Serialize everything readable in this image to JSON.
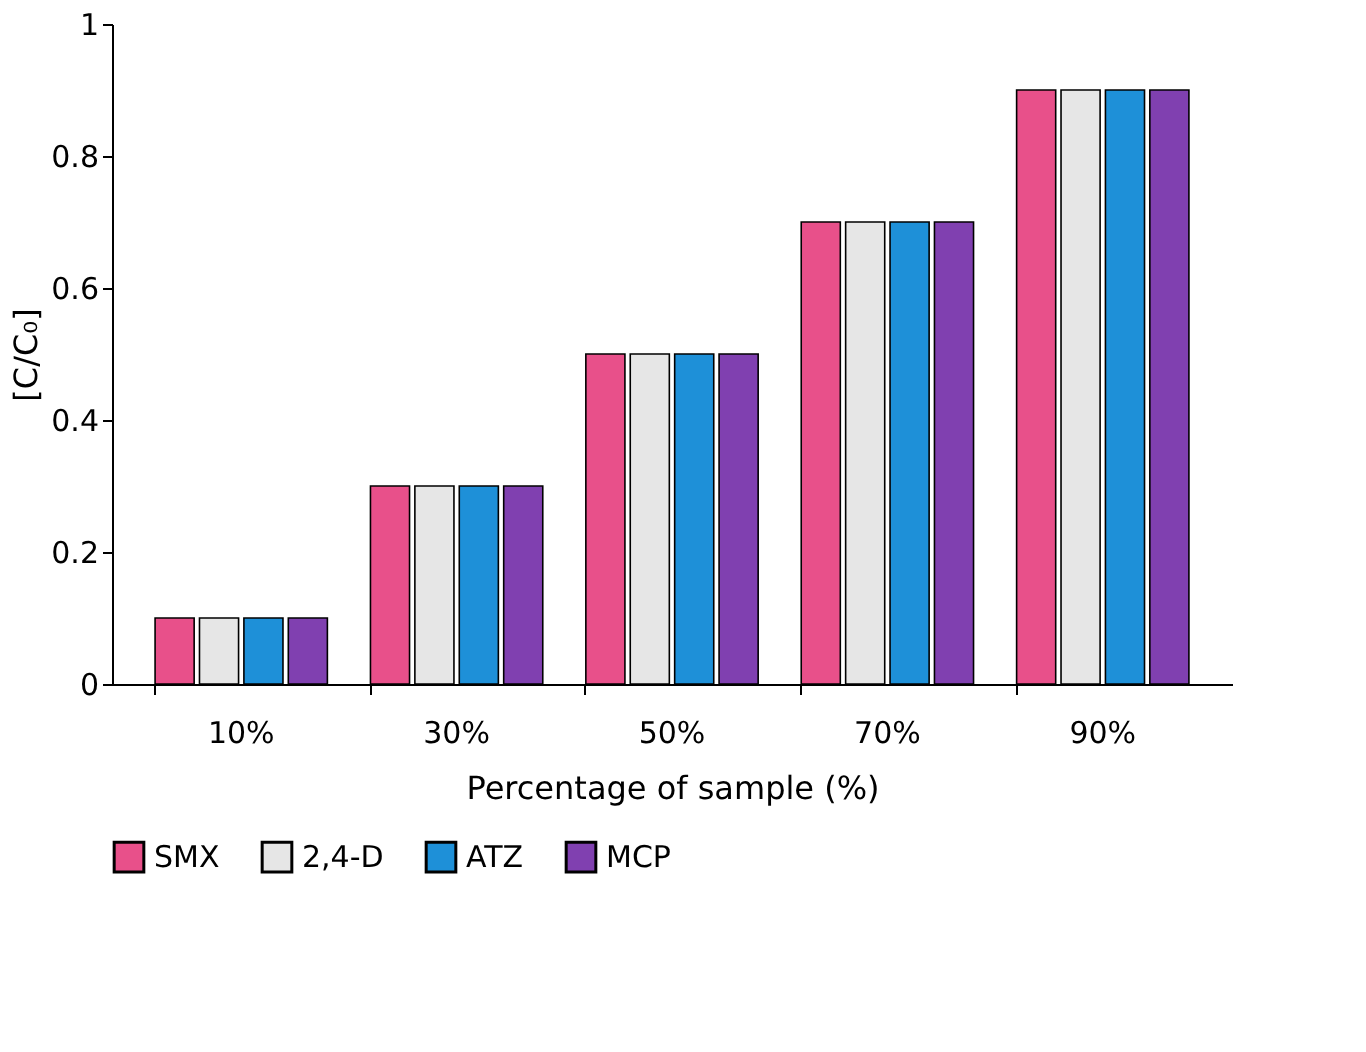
{
  "chart_data": {
    "type": "bar",
    "xlabel": "Percentage of sample (%)",
    "ylabel": "[C/C₀]",
    "categories": [
      "10%",
      "30%",
      "50%",
      "70%",
      "90%"
    ],
    "series": [
      {
        "name": "SMX",
        "color": "#e8508a",
        "values": [
          0.1,
          0.3,
          0.5,
          0.7,
          0.9
        ]
      },
      {
        "name": "2,4-D",
        "color": "#e6e6e6",
        "values": [
          0.1,
          0.3,
          0.5,
          0.7,
          0.9
        ]
      },
      {
        "name": "ATZ",
        "color": "#1e90d8",
        "values": [
          0.1,
          0.3,
          0.5,
          0.7,
          0.9
        ]
      },
      {
        "name": "MCP",
        "color": "#8040b0",
        "values": [
          0.1,
          0.3,
          0.5,
          0.7,
          0.9
        ]
      }
    ],
    "ylim": [
      0,
      1
    ],
    "yticks": [
      0,
      0.2,
      0.4,
      0.6,
      0.8,
      1
    ],
    "grid": false,
    "legend": "bottom"
  }
}
